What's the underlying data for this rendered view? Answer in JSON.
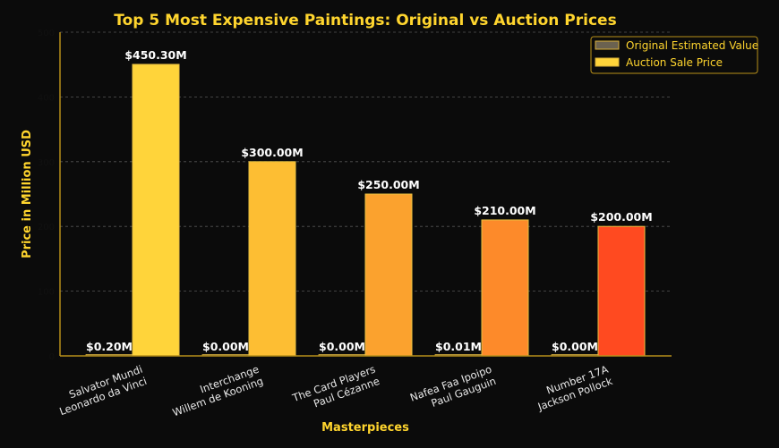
{
  "chart_data": {
    "type": "bar",
    "title": "Top 5 Most Expensive Paintings: Original vs Auction Prices",
    "xlabel": "Masterpieces",
    "ylabel": "Price in Million USD",
    "ylim": [
      0,
      500
    ],
    "yticks": [
      "0",
      "100",
      "200",
      "300",
      "400",
      "500"
    ],
    "grid": true,
    "legend_position": "top-right",
    "categories": [
      [
        "Salvator Mundi",
        "Leonardo da Vinci"
      ],
      [
        "Interchange",
        "Willem de Kooning"
      ],
      [
        "The Card Players",
        "Paul Cézanne"
      ],
      [
        "Nafea Faa Ipoipo",
        "Paul Gauguin"
      ],
      [
        "Number 17A",
        "Jackson Pollock"
      ]
    ],
    "series": [
      {
        "name": "Original Estimated Value",
        "values": [
          0.2,
          0.0,
          0.0,
          0.01,
          0.0
        ],
        "labels": [
          "$0.20M",
          "$0.00M",
          "$0.00M",
          "$0.01M",
          "$0.00M"
        ],
        "color": "#6b6250"
      },
      {
        "name": "Auction Sale Price",
        "values": [
          450.3,
          300.0,
          250.0,
          210.0,
          200.0
        ],
        "labels": [
          "$450.30M",
          "$300.00M",
          "$250.00M",
          "$210.00M",
          "$200.00M"
        ],
        "colors": [
          "#FFD43A",
          "#FDBE33",
          "#FBA22E",
          "#FD8A2A",
          "#FF4A20"
        ]
      }
    ]
  }
}
